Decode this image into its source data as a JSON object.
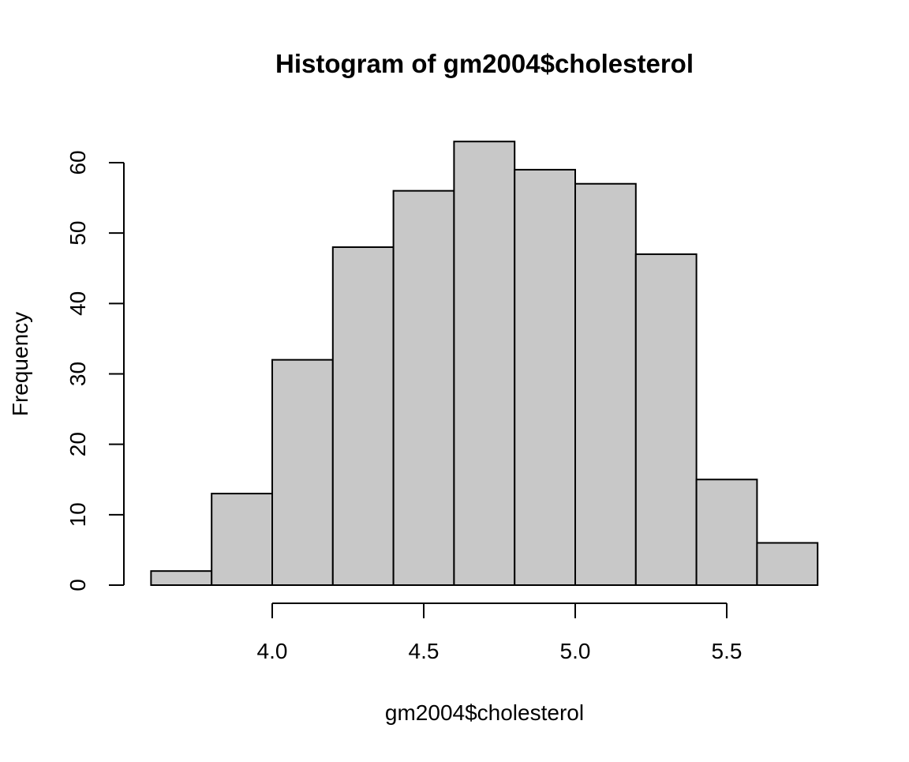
{
  "chart_data": {
    "type": "bar",
    "title": "Histogram of gm2004$cholesterol",
    "xlabel": "gm2004$cholesterol",
    "ylabel": "Frequency",
    "bins": [
      {
        "start": 3.6,
        "end": 3.8,
        "count": 2
      },
      {
        "start": 3.8,
        "end": 4.0,
        "count": 13
      },
      {
        "start": 4.0,
        "end": 4.2,
        "count": 32
      },
      {
        "start": 4.2,
        "end": 4.4,
        "count": 48
      },
      {
        "start": 4.4,
        "end": 4.6,
        "count": 56
      },
      {
        "start": 4.6,
        "end": 4.8,
        "count": 63
      },
      {
        "start": 4.8,
        "end": 5.0,
        "count": 59
      },
      {
        "start": 5.0,
        "end": 5.2,
        "count": 57
      },
      {
        "start": 5.2,
        "end": 5.4,
        "count": 47
      },
      {
        "start": 5.4,
        "end": 5.6,
        "count": 15
      },
      {
        "start": 5.6,
        "end": 5.8,
        "count": 6
      }
    ],
    "xticks": [
      4.0,
      4.5,
      5.0,
      5.5
    ],
    "xtick_labels": [
      "4.0",
      "4.5",
      "5.0",
      "5.5"
    ],
    "yticks": [
      0,
      10,
      20,
      30,
      40,
      50,
      60
    ],
    "ytick_labels": [
      "0",
      "10",
      "20",
      "30",
      "40",
      "50",
      "60"
    ],
    "xlim": [
      3.6,
      5.8
    ],
    "ylim": [
      0,
      63
    ],
    "bar_color": "#c8c8c8",
    "edge_color": "#000000",
    "grid": false,
    "legend": "none"
  }
}
